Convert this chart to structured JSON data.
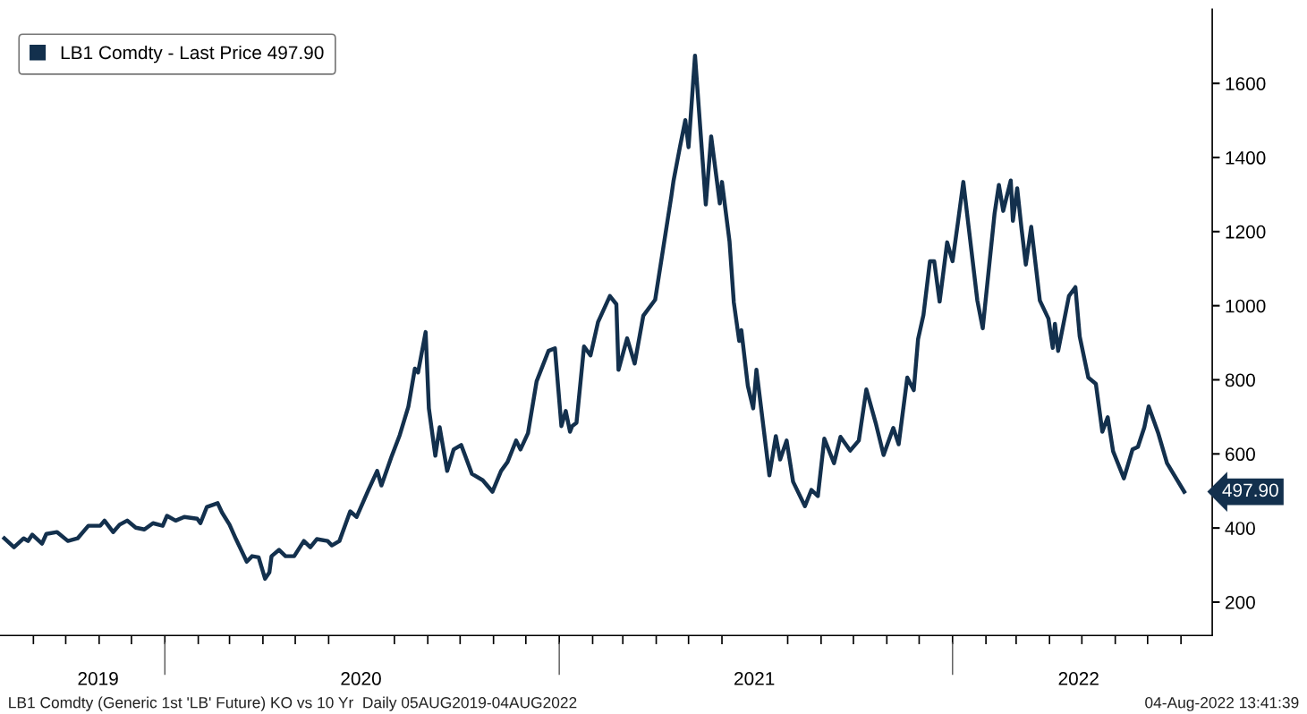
{
  "chart_data": {
    "type": "line",
    "x": [
      "2019-08-05",
      "2019-08-14",
      "2019-08-23",
      "2019-08-27",
      "2019-08-31",
      "2019-09-09",
      "2019-09-13",
      "2019-09-23",
      "2019-10-03",
      "2019-10-12",
      "2019-10-22",
      "2019-11-02",
      "2019-11-06",
      "2019-11-14",
      "2019-11-20",
      "2019-11-27",
      "2019-12-05",
      "2019-12-13",
      "2019-12-21",
      "2019-12-30",
      "2020-01-03",
      "2020-01-11",
      "2020-01-19",
      "2020-01-31",
      "2020-02-03",
      "2020-02-09",
      "2020-02-19",
      "2020-02-23",
      "2020-03-01",
      "2020-03-07",
      "2020-03-17",
      "2020-03-22",
      "2020-03-28",
      "2020-04-03",
      "2020-04-07",
      "2020-04-09",
      "2020-04-16",
      "2020-04-22",
      "2020-04-30",
      "2020-05-09",
      "2020-05-15",
      "2020-05-21",
      "2020-05-31",
      "2020-06-04",
      "2020-06-11",
      "2020-06-21",
      "2020-06-27",
      "2020-07-08",
      "2020-07-16",
      "2020-07-20",
      "2020-07-29",
      "2020-08-06",
      "2020-08-14",
      "2020-08-20",
      "2020-08-23",
      "2020-08-30",
      "2020-09-02",
      "2020-09-08",
      "2020-09-12",
      "2020-09-19",
      "2020-09-25",
      "2020-10-02",
      "2020-10-12",
      "2020-10-22",
      "2020-10-31",
      "2020-11-08",
      "2020-11-14",
      "2020-11-22",
      "2020-11-26",
      "2020-12-03",
      "2020-12-11",
      "2020-12-22",
      "2020-12-28",
      "2021-01-03",
      "2021-01-07",
      "2021-01-11",
      "2021-01-13",
      "2021-01-17",
      "2021-01-24",
      "2021-01-30",
      "2021-02-06",
      "2021-02-17",
      "2021-02-23",
      "2021-02-25",
      "2021-03-05",
      "2021-03-12",
      "2021-03-20",
      "2021-03-31",
      "2021-04-15",
      "2021-04-17",
      "2021-04-23",
      "2021-04-28",
      "2021-05-01",
      "2021-05-07",
      "2021-05-17",
      "2021-05-22",
      "2021-05-30",
      "2021-06-01",
      "2021-06-08",
      "2021-06-12",
      "2021-06-17",
      "2021-06-19",
      "2021-06-25",
      "2021-06-30",
      "2021-07-03",
      "2021-07-15",
      "2021-07-21",
      "2021-07-25",
      "2021-07-31",
      "2021-08-06",
      "2021-08-17",
      "2021-08-23",
      "2021-08-29",
      "2021-09-04",
      "2021-09-13",
      "2021-09-19",
      "2021-09-28",
      "2021-10-06",
      "2021-10-13",
      "2021-10-22",
      "2021-10-29",
      "2021-11-07",
      "2021-11-12",
      "2021-11-20",
      "2021-11-26",
      "2021-11-30",
      "2021-12-05",
      "2021-12-11",
      "2021-12-15",
      "2021-12-20",
      "2021-12-27",
      "2022-01-01",
      "2022-01-06",
      "2022-01-11",
      "2022-01-24",
      "2022-01-29",
      "2022-02-09",
      "2022-02-13",
      "2022-02-17",
      "2022-02-24",
      "2022-02-26",
      "2022-03-02",
      "2022-03-06",
      "2022-03-10",
      "2022-03-15",
      "2022-03-23",
      "2022-03-31",
      "2022-04-04",
      "2022-04-06",
      "2022-04-09",
      "2022-04-19",
      "2022-04-25",
      "2022-04-29",
      "2022-05-07",
      "2022-05-14",
      "2022-05-20",
      "2022-05-25",
      "2022-05-30",
      "2022-06-09",
      "2022-06-17",
      "2022-06-22",
      "2022-06-28",
      "2022-07-02",
      "2022-07-11",
      "2022-07-19",
      "2022-08-04"
    ],
    "series": [
      {
        "name": "LB1 Comdty - Last Price 497.90",
        "color": "#13304d",
        "values": [
          372,
          348,
          372,
          365,
          382,
          358,
          384,
          389,
          365,
          372,
          406,
          406,
          420,
          389,
          409,
          420,
          401,
          396,
          413,
          406,
          433,
          420,
          430,
          425,
          413,
          457,
          467,
          442,
          409,
          370,
          309,
          324,
          321,
          263,
          280,
          324,
          341,
          324,
          324,
          365,
          348,
          370,
          365,
          353,
          365,
          445,
          430,
          503,
          554,
          515,
          590,
          651,
          728,
          830,
          820,
          929,
          723,
          595,
          672,
          554,
          612,
          624,
          546,
          529,
          498,
          554,
          578,
          636,
          612,
          656,
          796,
          878,
          885,
          675,
          716,
          660,
          675,
          684,
          890,
          866,
          956,
          1026,
          1004,
          827,
          912,
          844,
          973,
          1016,
          1295,
          1336,
          1428,
          1501,
          1428,
          1675,
          1273,
          1457,
          1276,
          1334,
          1174,
          1009,
          905,
          934,
          784,
          723,
          827,
          542,
          648,
          585,
          636,
          525,
          459,
          503,
          486,
          641,
          575,
          646,
          609,
          636,
          774,
          680,
          597,
          670,
          626,
          806,
          772,
          910,
          975,
          1120,
          1120,
          1011,
          1171,
          1120,
          1225,
          1334,
          1014,
          939,
          1249,
          1326,
          1256,
          1338,
          1229,
          1317,
          1208,
          1111,
          1213,
          1014,
          965,
          886,
          951,
          878,
          1026,
          1050,
          917,
          806,
          789,
          660,
          699,
          607,
          534,
          612,
          619,
          672,
          728,
          655,
          575,
          497.9
        ]
      }
    ],
    "xlim": [
      "2019-08-01",
      "2022-08-30"
    ],
    "xticks": [
      {
        "value": "2019-09-01",
        "label": null
      },
      {
        "value": "2019-10-01",
        "label": null
      },
      {
        "value": "2019-10-31",
        "label": "2019"
      },
      {
        "value": "2019-11-01",
        "label": null
      },
      {
        "value": "2019-12-01",
        "label": null
      },
      {
        "value": "2020-01-01",
        "label": null
      },
      {
        "value": "2020-02-01",
        "label": null
      },
      {
        "value": "2020-03-01",
        "label": null
      },
      {
        "value": "2020-04-01",
        "label": null
      },
      {
        "value": "2020-05-01",
        "label": null
      },
      {
        "value": "2020-06-01",
        "label": null
      },
      {
        "value": "2020-07-01",
        "label": "2020"
      },
      {
        "value": "2020-08-01",
        "label": null
      },
      {
        "value": "2020-09-01",
        "label": null
      },
      {
        "value": "2020-10-01",
        "label": null
      },
      {
        "value": "2020-11-01",
        "label": null
      },
      {
        "value": "2020-12-01",
        "label": null
      },
      {
        "value": "2021-01-01",
        "label": null
      },
      {
        "value": "2021-02-01",
        "label": null
      },
      {
        "value": "2021-03-01",
        "label": null
      },
      {
        "value": "2021-04-01",
        "label": null
      },
      {
        "value": "2021-05-01",
        "label": null
      },
      {
        "value": "2021-06-01",
        "label": null
      },
      {
        "value": "2021-07-01",
        "label": "2021"
      },
      {
        "value": "2021-08-01",
        "label": null
      },
      {
        "value": "2021-09-01",
        "label": null
      },
      {
        "value": "2021-10-01",
        "label": null
      },
      {
        "value": "2021-11-01",
        "label": null
      },
      {
        "value": "2021-12-01",
        "label": null
      },
      {
        "value": "2022-01-01",
        "label": null
      },
      {
        "value": "2022-02-01",
        "label": null
      },
      {
        "value": "2022-03-01",
        "label": null
      },
      {
        "value": "2022-04-01",
        "label": null
      },
      {
        "value": "2022-04-28",
        "label": "2022"
      },
      {
        "value": "2022-05-01",
        "label": null
      },
      {
        "value": "2022-06-01",
        "label": null
      },
      {
        "value": "2022-07-01",
        "label": null
      },
      {
        "value": "2022-08-01",
        "label": null
      }
    ],
    "ylim": [
      110,
      1800
    ],
    "yticks": [
      200,
      400,
      600,
      800,
      1000,
      1200,
      1400,
      1600
    ],
    "grid": false,
    "legend": "top left",
    "marker": "none",
    "line_style": "solid",
    "annotations": [
      {
        "text": "497.90",
        "x": "2022-08-04",
        "y": 497.9
      },
      "LB1 Comdty (Generic 1st 'LB' Future) KO vs 10 Yr  Daily 05AUG2019-04AUG2022",
      "04-Aug-2022 13:41:39"
    ]
  }
}
